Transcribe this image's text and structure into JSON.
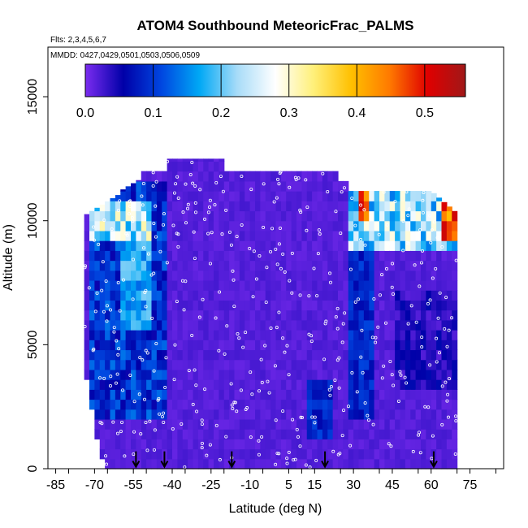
{
  "chart_data": {
    "type": "heatmap",
    "title": "ATOM4 Southbound MeteoricFrac_PALMS",
    "subtitle_flights": "Flts: 2,3,4,5,6,7",
    "subtitle_dates": "MMDD: 0427,0429,0501,0503,0506,0509",
    "xlabel": "Latitude (deg N)",
    "ylabel": "Altitude (m)",
    "xlim": [
      -88,
      88
    ],
    "ylim": [
      0,
      17000
    ],
    "x_ticks": [
      -85,
      -70,
      -55,
      -40,
      -25,
      -10,
      5,
      15,
      30,
      45,
      60,
      75
    ],
    "x_tick_labels": [
      "-85",
      "-70",
      "-55",
      "-40",
      "-25",
      "-10",
      "5",
      "15",
      "30",
      "45",
      "60",
      "75"
    ],
    "y_ticks": [
      0,
      5000,
      10000,
      15000
    ],
    "y_tick_labels": [
      "0",
      "5000",
      "10000",
      "15000"
    ],
    "colorbar": {
      "range": [
        0.0,
        0.56
      ],
      "ticks": [
        0.0,
        0.1,
        0.2,
        0.3,
        0.4,
        0.5
      ],
      "tick_labels": [
        "0.0",
        "0.1",
        "0.2",
        "0.3",
        "0.4",
        "0.5"
      ],
      "colors": [
        "#7b2cf0",
        "#0000a8",
        "#0046e0",
        "#00a8f5",
        "#a8dcf8",
        "#ffffff",
        "#fff07a",
        "#ffc000",
        "#ff7a00",
        "#e00000",
        "#a01818"
      ]
    },
    "profile_latitudes": [
      -54,
      -43,
      -17,
      19,
      61
    ],
    "grid": false
  }
}
